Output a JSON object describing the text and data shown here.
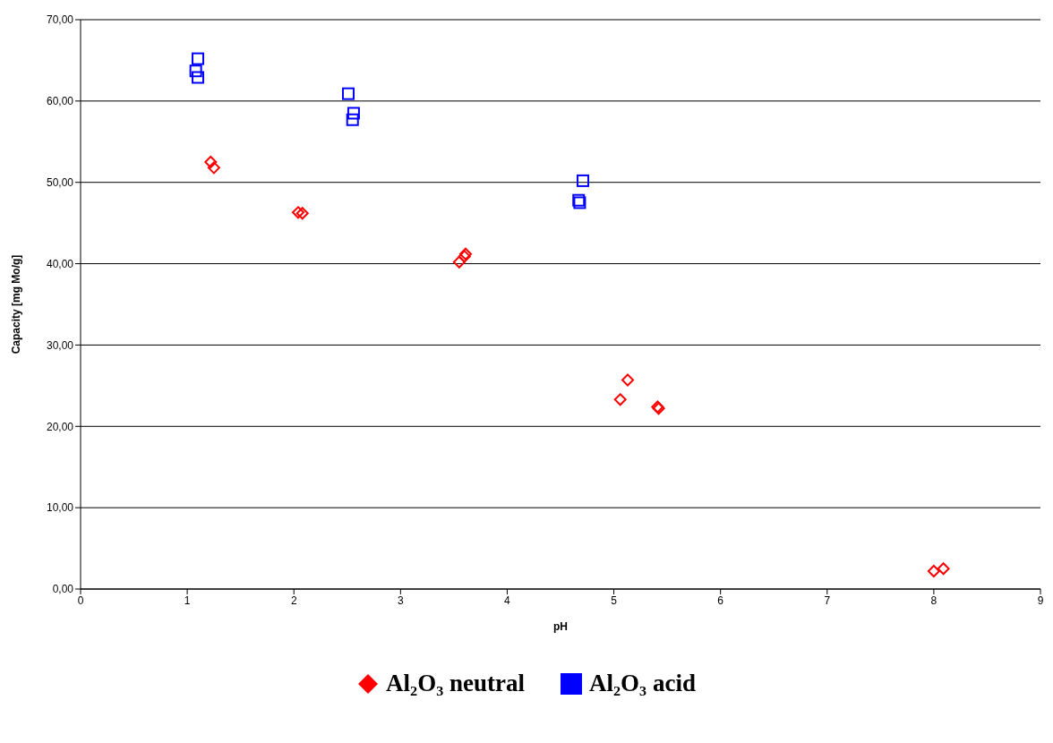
{
  "chart_data": {
    "type": "scatter",
    "xlabel": "pH",
    "ylabel": "Capacity [mg Mo/g]",
    "xlim": [
      0,
      9
    ],
    "xticks": [
      0,
      1,
      2,
      3,
      4,
      5,
      6,
      7,
      8,
      9
    ],
    "ylim": [
      0,
      70
    ],
    "yticks": [
      {
        "value": 0,
        "label": "0,00"
      },
      {
        "value": 10,
        "label": "10,00"
      },
      {
        "value": 20,
        "label": "20,00"
      },
      {
        "value": 30,
        "label": "30,00"
      },
      {
        "value": 40,
        "label": "40,00"
      },
      {
        "value": 50,
        "label": "50,00"
      },
      {
        "value": 60,
        "label": "60,00"
      },
      {
        "value": 70,
        "label": "70,00"
      }
    ],
    "grid": "y",
    "legend": "bottom",
    "series": [
      {
        "name": "Al₂O₃ neutral",
        "color": "#ff0000",
        "marker": "diamond",
        "x": [
          1.22,
          1.25,
          2.04,
          2.08,
          3.55,
          3.6,
          3.61,
          5.06,
          5.13,
          5.41,
          5.42,
          8.0,
          8.09
        ],
        "values": [
          52.5,
          51.8,
          46.3,
          46.2,
          40.2,
          40.9,
          41.2,
          23.3,
          25.7,
          22.4,
          22.2,
          2.2,
          2.5
        ]
      },
      {
        "name": "Al₂O₃ acid",
        "color": "#0000ff",
        "marker": "square",
        "x": [
          1.1,
          1.08,
          1.1,
          2.51,
          2.56,
          2.55,
          4.71,
          4.67,
          4.68
        ],
        "values": [
          65.2,
          63.7,
          62.9,
          60.9,
          58.5,
          57.7,
          50.2,
          47.8,
          47.5
        ]
      }
    ]
  }
}
